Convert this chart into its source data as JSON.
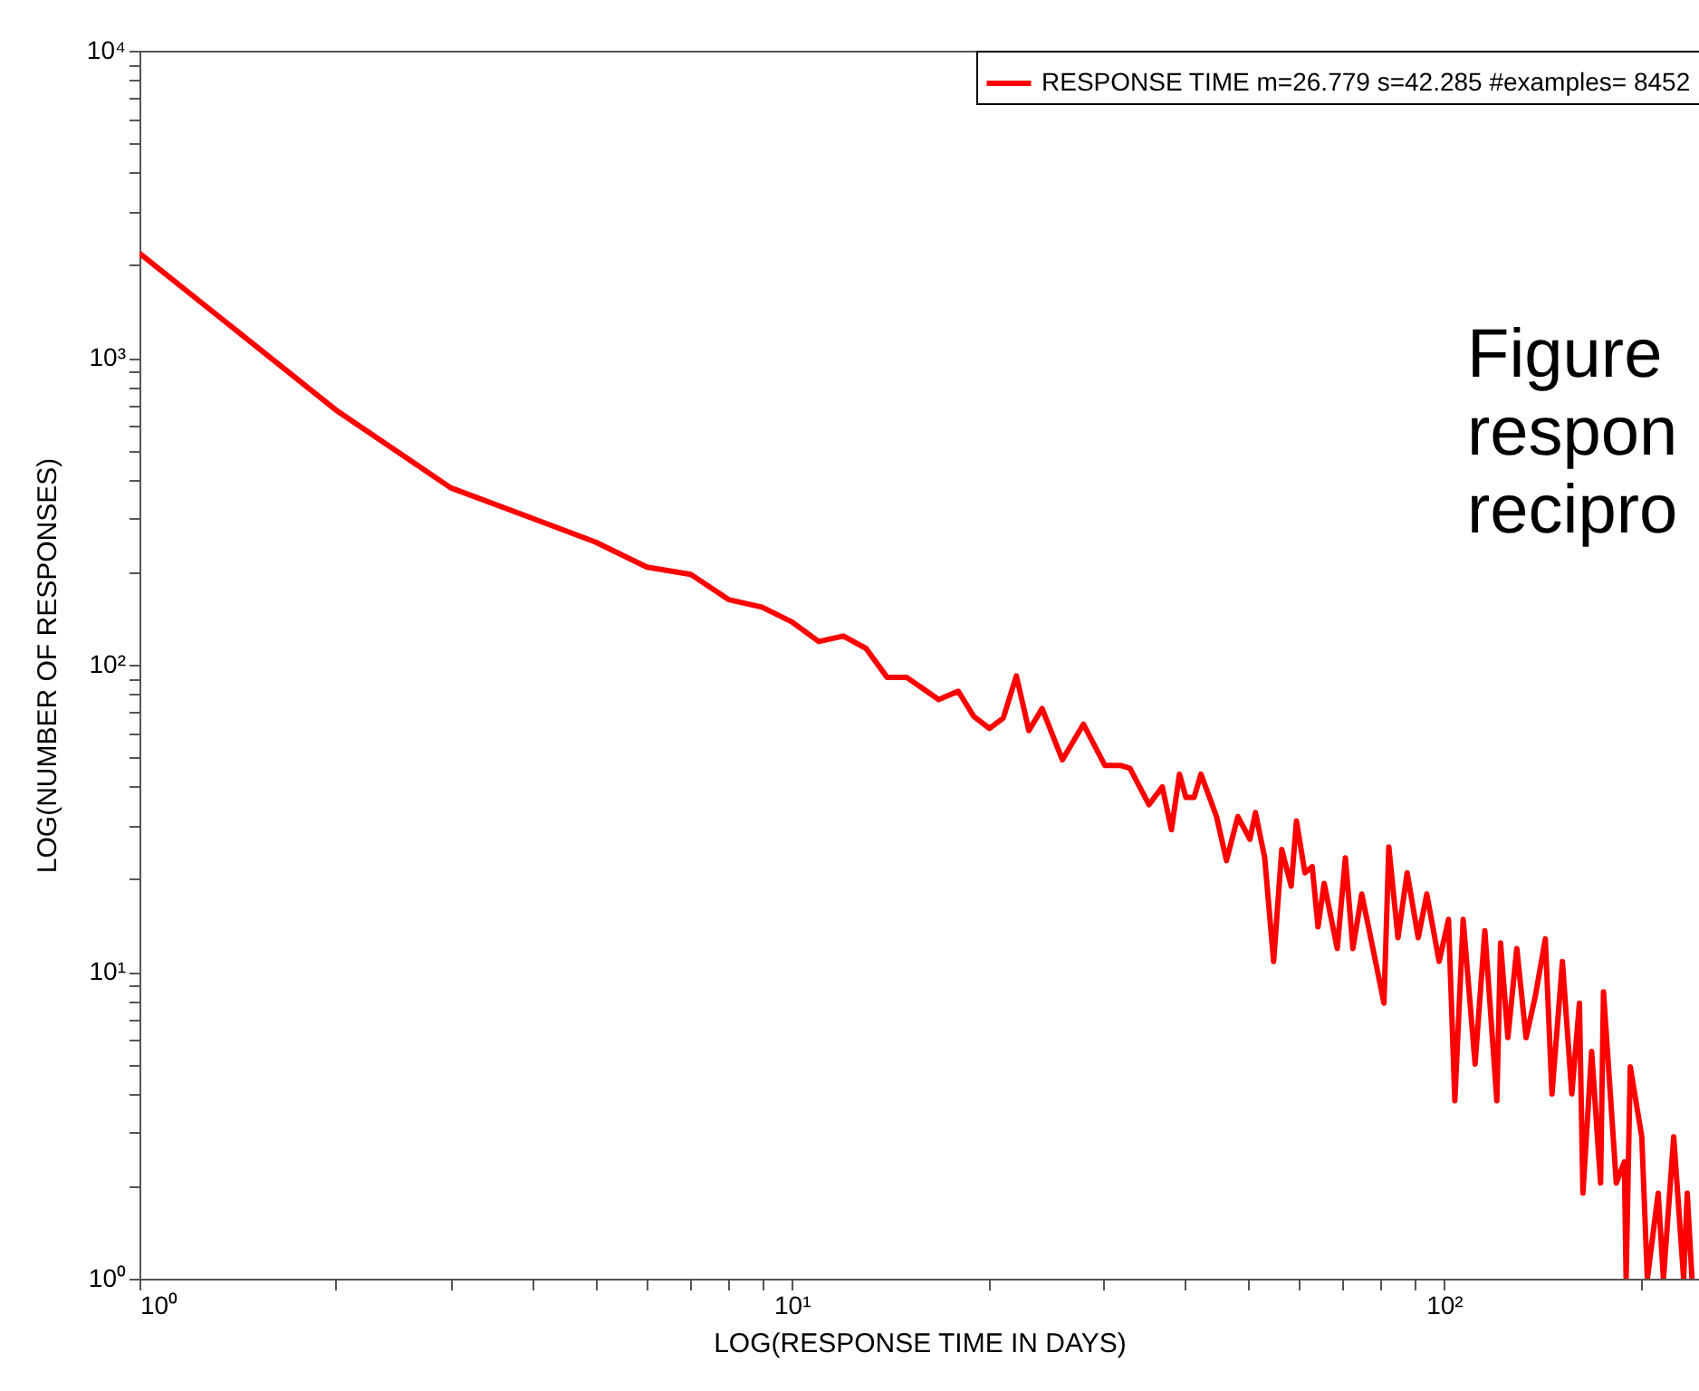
{
  "chart_data": {
    "type": "line",
    "xlabel": "LOG(RESPONSE TIME IN DAYS)",
    "ylabel": "LOG(NUMBER OF RESPONSES)",
    "log": "xy",
    "grid": false,
    "legend": "top right",
    "line_style": "solid",
    "marker": "none",
    "xlim": [
      1,
      246
    ],
    "ylim": [
      1,
      10000
    ],
    "xticks": [
      {
        "value": 1,
        "label": "10⁰"
      },
      {
        "value": 2,
        "label": null
      },
      {
        "value": 3,
        "label": null
      },
      {
        "value": 4,
        "label": null
      },
      {
        "value": 5,
        "label": null
      },
      {
        "value": 6,
        "label": null
      },
      {
        "value": 7,
        "label": null
      },
      {
        "value": 8,
        "label": null
      },
      {
        "value": 9,
        "label": null
      },
      {
        "value": 10,
        "label": "10¹"
      },
      {
        "value": 20,
        "label": null
      },
      {
        "value": 30,
        "label": null
      },
      {
        "value": 40,
        "label": null
      },
      {
        "value": 50,
        "label": null
      },
      {
        "value": 60,
        "label": null
      },
      {
        "value": 70,
        "label": null
      },
      {
        "value": 80,
        "label": null
      },
      {
        "value": 90,
        "label": null
      },
      {
        "value": 100,
        "label": "10²"
      },
      {
        "value": 200,
        "label": null
      }
    ],
    "yticks": [
      {
        "value": 1,
        "label": "10⁰"
      },
      {
        "value": 2,
        "label": null
      },
      {
        "value": 3,
        "label": null
      },
      {
        "value": 4,
        "label": null
      },
      {
        "value": 5,
        "label": null
      },
      {
        "value": 6,
        "label": null
      },
      {
        "value": 7,
        "label": null
      },
      {
        "value": 8,
        "label": null
      },
      {
        "value": 9,
        "label": null
      },
      {
        "value": 10,
        "label": "10¹"
      },
      {
        "value": 20,
        "label": null
      },
      {
        "value": 30,
        "label": null
      },
      {
        "value": 40,
        "label": null
      },
      {
        "value": 50,
        "label": null
      },
      {
        "value": 60,
        "label": null
      },
      {
        "value": 70,
        "label": null
      },
      {
        "value": 80,
        "label": null
      },
      {
        "value": 90,
        "label": null
      },
      {
        "value": 100,
        "label": "10²"
      },
      {
        "value": 200,
        "label": null
      },
      {
        "value": 300,
        "label": null
      },
      {
        "value": 400,
        "label": null
      },
      {
        "value": 500,
        "label": null
      },
      {
        "value": 600,
        "label": null
      },
      {
        "value": 700,
        "label": null
      },
      {
        "value": 800,
        "label": null
      },
      {
        "value": 900,
        "label": null
      },
      {
        "value": 1000,
        "label": "10³"
      },
      {
        "value": 2000,
        "label": null
      },
      {
        "value": 3000,
        "label": null
      },
      {
        "value": 4000,
        "label": null
      },
      {
        "value": 5000,
        "label": null
      },
      {
        "value": 6000,
        "label": null
      },
      {
        "value": 7000,
        "label": null
      },
      {
        "value": 8000,
        "label": null
      },
      {
        "value": 9000,
        "label": null
      },
      {
        "value": 10000,
        "label": "10⁴"
      }
    ],
    "annotations": [
      "Figure",
      "respon",
      "recipro"
    ],
    "series": [
      {
        "name": "RESPONSE TIME m=26.779 s=42.285 #examples= 8452",
        "color": "#ff0000",
        "x": [
          1,
          2,
          3,
          4,
          5,
          6,
          7,
          8,
          9,
          10,
          11,
          12,
          13,
          14,
          15,
          16.8,
          18,
          19,
          20.1,
          21.1,
          22.1,
          23.1,
          24.2,
          26,
          28,
          30.2,
          31.9,
          33,
          35.3,
          37,
          38.2,
          39.3,
          40.2,
          41.4,
          42.4,
          44.8,
          46.4,
          48.3,
          50.4,
          51.4,
          53.1,
          54.8,
          56.4,
          58.3,
          59.4,
          61.2,
          62.8,
          64.1,
          65.5,
          68.6,
          70.6,
          72.5,
          74.8,
          77.5,
          80.9,
          82.3,
          85,
          87.8,
          91.3,
          94.1,
          98.3,
          101.6,
          103.9,
          107,
          111.6,
          115.5,
          120.5,
          122.1,
          125.3,
          129.3,
          133.6,
          138,
          143,
          146.4,
          151.9,
          157,
          161.3,
          163.3,
          168.4,
          173.8,
          175.6,
          183.7,
          189,
          190.2,
          193,
          201,
          205,
          213,
          217,
          225,
          233,
          236,
          240
        ],
        "values": [
          2190,
          676,
          377,
          300,
          251,
          208,
          197,
          163,
          154,
          138,
          119,
          124,
          113,
          91,
          91,
          77,
          82,
          68,
          62,
          67,
          92,
          61,
          72,
          49,
          64,
          47,
          47,
          46,
          35,
          40,
          29,
          44,
          37,
          37,
          44,
          32,
          23,
          32,
          27,
          33,
          23.5,
          10.8,
          25,
          19,
          31,
          21,
          22,
          14,
          19.4,
          11.9,
          23.5,
          11.9,
          17.9,
          12.4,
          7.9,
          25.5,
          12.9,
          21,
          12.9,
          17.9,
          10.8,
          14.8,
          3.8,
          14.8,
          5,
          13.6,
          3.8,
          12.4,
          6.1,
          11.9,
          6.1,
          8.3,
          12.8,
          4,
          10.8,
          4,
          7.9,
          1.9,
          5.5,
          2.05,
          8.6,
          2.05,
          2.4,
          1,
          4.9,
          2.9,
          1,
          1.9,
          1,
          2.9,
          1,
          1.9,
          1
        ]
      }
    ]
  }
}
